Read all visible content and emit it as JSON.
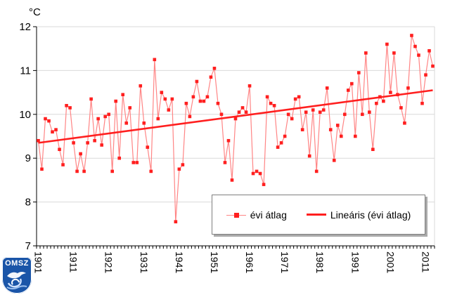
{
  "title": {
    "unit_label": "°C"
  },
  "legend": {
    "series_label": "évi átlag",
    "trend_label": "Lineáris (évi átlag)"
  },
  "logo": {
    "text": "OMSZ"
  },
  "colors": {
    "series_marker": "#ff1f1f",
    "series_line": "#ff8585",
    "trend_line": "#ff1f1f",
    "grid": "#d9d9d9",
    "axis": "#000000",
    "text": "#000000",
    "legend_border": "#7f7f7f",
    "logo_blue": "#1a55a8"
  },
  "chart_data": {
    "type": "line",
    "title": "°C",
    "ylabel": "°C",
    "xlabel": "",
    "ylim": [
      7,
      12
    ],
    "grid": "horizontal",
    "legend_position": "bottom-center-inside",
    "y_axis_ticks": [
      12,
      11,
      10,
      9,
      8,
      7
    ],
    "y_gridlines": [
      12,
      11,
      10,
      9,
      8
    ],
    "x_label_every": 10,
    "x_first_label": "1901",
    "x_last_label": "2011",
    "x": [
      1901,
      1902,
      1903,
      1904,
      1905,
      1906,
      1907,
      1908,
      1909,
      1910,
      1911,
      1912,
      1913,
      1914,
      1915,
      1916,
      1917,
      1918,
      1919,
      1920,
      1921,
      1922,
      1923,
      1924,
      1925,
      1926,
      1927,
      1928,
      1929,
      1930,
      1931,
      1932,
      1933,
      1934,
      1935,
      1936,
      1937,
      1938,
      1939,
      1940,
      1941,
      1942,
      1943,
      1944,
      1945,
      1946,
      1947,
      1948,
      1949,
      1950,
      1951,
      1952,
      1953,
      1954,
      1955,
      1956,
      1957,
      1958,
      1959,
      1960,
      1961,
      1962,
      1963,
      1964,
      1965,
      1966,
      1967,
      1968,
      1969,
      1970,
      1971,
      1972,
      1973,
      1974,
      1975,
      1976,
      1977,
      1978,
      1979,
      1980,
      1981,
      1982,
      1983,
      1984,
      1985,
      1986,
      1987,
      1988,
      1989,
      1990,
      1991,
      1992,
      1993,
      1994,
      1995,
      1996,
      1997,
      1998,
      1999,
      2000,
      2001,
      2002,
      2003,
      2004,
      2005,
      2006,
      2007,
      2008,
      2009,
      2010,
      2011,
      2012,
      2013
    ],
    "series": [
      {
        "name": "évi átlag",
        "values": [
          9.4,
          8.75,
          9.9,
          9.85,
          9.6,
          9.65,
          9.2,
          8.85,
          10.2,
          10.15,
          9.35,
          8.7,
          9.1,
          8.7,
          9.35,
          10.35,
          9.4,
          9.9,
          9.3,
          9.95,
          10.0,
          8.7,
          10.3,
          9.0,
          10.45,
          9.8,
          10.15,
          8.9,
          8.9,
          10.65,
          9.8,
          9.25,
          8.7,
          11.25,
          9.9,
          10.5,
          10.35,
          10.1,
          10.35,
          7.55,
          8.75,
          8.85,
          10.25,
          9.95,
          10.4,
          10.75,
          10.3,
          10.3,
          10.4,
          10.85,
          11.05,
          10.25,
          10.0,
          8.9,
          9.4,
          8.5,
          9.9,
          10.05,
          10.15,
          10.05,
          10.65,
          8.65,
          8.7,
          8.65,
          8.4,
          10.4,
          10.25,
          10.2,
          9.25,
          9.35,
          9.5,
          10.0,
          9.9,
          10.35,
          10.4,
          9.65,
          10.05,
          9.05,
          10.1,
          8.7,
          10.05,
          10.1,
          10.6,
          9.65,
          8.95,
          9.75,
          9.5,
          10.0,
          10.55,
          10.7,
          9.5,
          10.95,
          10.0,
          11.4,
          10.05,
          9.2,
          10.25,
          10.4,
          10.3,
          11.6,
          10.5,
          11.4,
          10.45,
          10.15,
          9.8,
          10.6,
          11.8,
          11.55,
          11.35,
          10.25,
          10.9,
          11.45,
          11.1
        ]
      }
    ],
    "trend": {
      "name": "Lineáris (évi átlag)",
      "start_value": 9.35,
      "end_value": 10.55
    }
  }
}
